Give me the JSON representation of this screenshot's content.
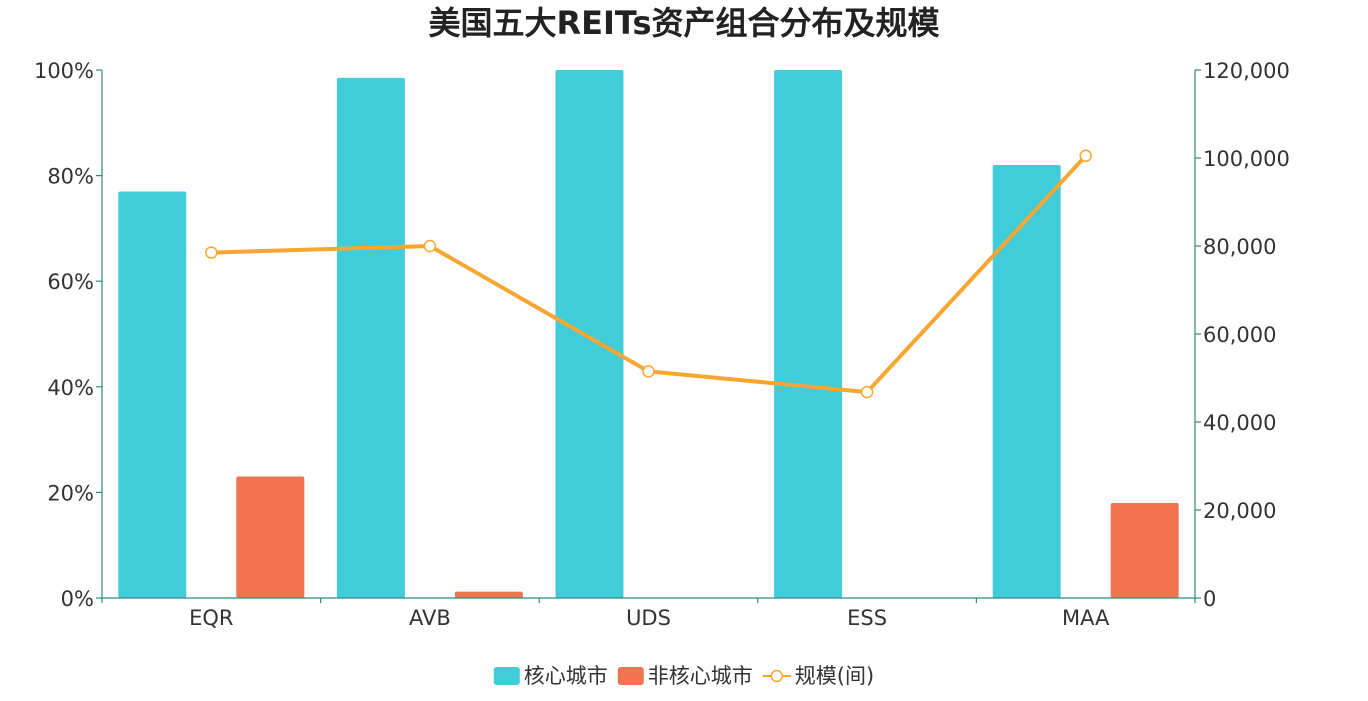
{
  "chart_data": {
    "type": "bar",
    "title": "美国五大REITs资产组合分布及规模",
    "categories": [
      "EQR",
      "AVB",
      "UDS",
      "ESS",
      "MAA"
    ],
    "series": [
      {
        "name": "核心城市",
        "type": "bar",
        "axis": "left",
        "color": "#40CCD8",
        "values": [
          77,
          98.5,
          100,
          100,
          82
        ]
      },
      {
        "name": "非核心城市",
        "type": "bar",
        "axis": "left",
        "color": "#F07450",
        "values": [
          23,
          1.2,
          0,
          0,
          18
        ]
      },
      {
        "name": "规模(间)",
        "type": "line",
        "axis": "right",
        "color": "#F8A630",
        "values": [
          78500,
          80000,
          51500,
          46800,
          100500
        ]
      }
    ],
    "y_left": {
      "min": 0,
      "max": 100,
      "ticks": [
        "0%",
        "20%",
        "40%",
        "60%",
        "80%",
        "100%"
      ]
    },
    "y_right": {
      "min": 0,
      "max": 120000,
      "ticks": [
        "0",
        "20,000",
        "40,000",
        "60,000",
        "80,000",
        "100,000",
        "120,000"
      ]
    },
    "axis_color": "#2E8B80",
    "legend_position": "bottom-center",
    "grid": false
  }
}
